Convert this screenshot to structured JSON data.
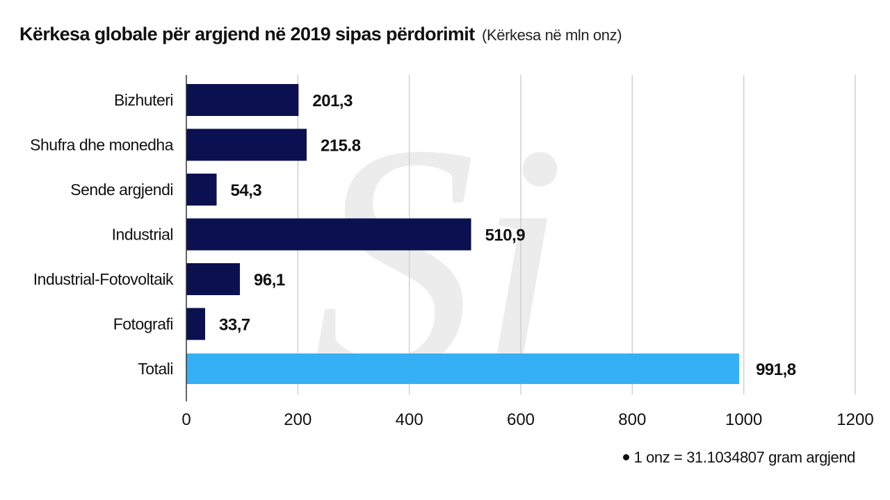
{
  "header": {
    "title": "Kërkesa globale për argjend në 2019 sipas përdorimit",
    "subtitle": "(Kërkesa në mln onz)"
  },
  "note": {
    "text": "1 onz = 31.1034807 gram argjend"
  },
  "watermark": {
    "letters": "Si"
  },
  "colors": {
    "bar": "#0a1050",
    "total_bar": "#35b0f5",
    "grid": "#d0d0d0",
    "axis": "#333333",
    "watermark": "#ececec"
  },
  "chart_data": {
    "type": "bar",
    "orientation": "horizontal",
    "categories": [
      "Bizhuteri",
      "Shufra dhe monedha",
      "Sende argjendi",
      "Industrial",
      "Industrial-Fotovoltaik",
      "Fotografi",
      "Totali"
    ],
    "values": [
      201.3,
      215.8,
      54.3,
      510.9,
      96.1,
      33.7,
      991.8
    ],
    "value_labels": [
      "201,3",
      "215.8",
      "54,3",
      "510,9",
      "96,1",
      "33,7",
      "991,8"
    ],
    "highlight_category": "Totali",
    "xlim": [
      0,
      1200
    ],
    "xticks": [
      "0",
      "200",
      "400",
      "600",
      "800",
      "1000",
      "1200"
    ],
    "grid": true,
    "legend": "none"
  }
}
